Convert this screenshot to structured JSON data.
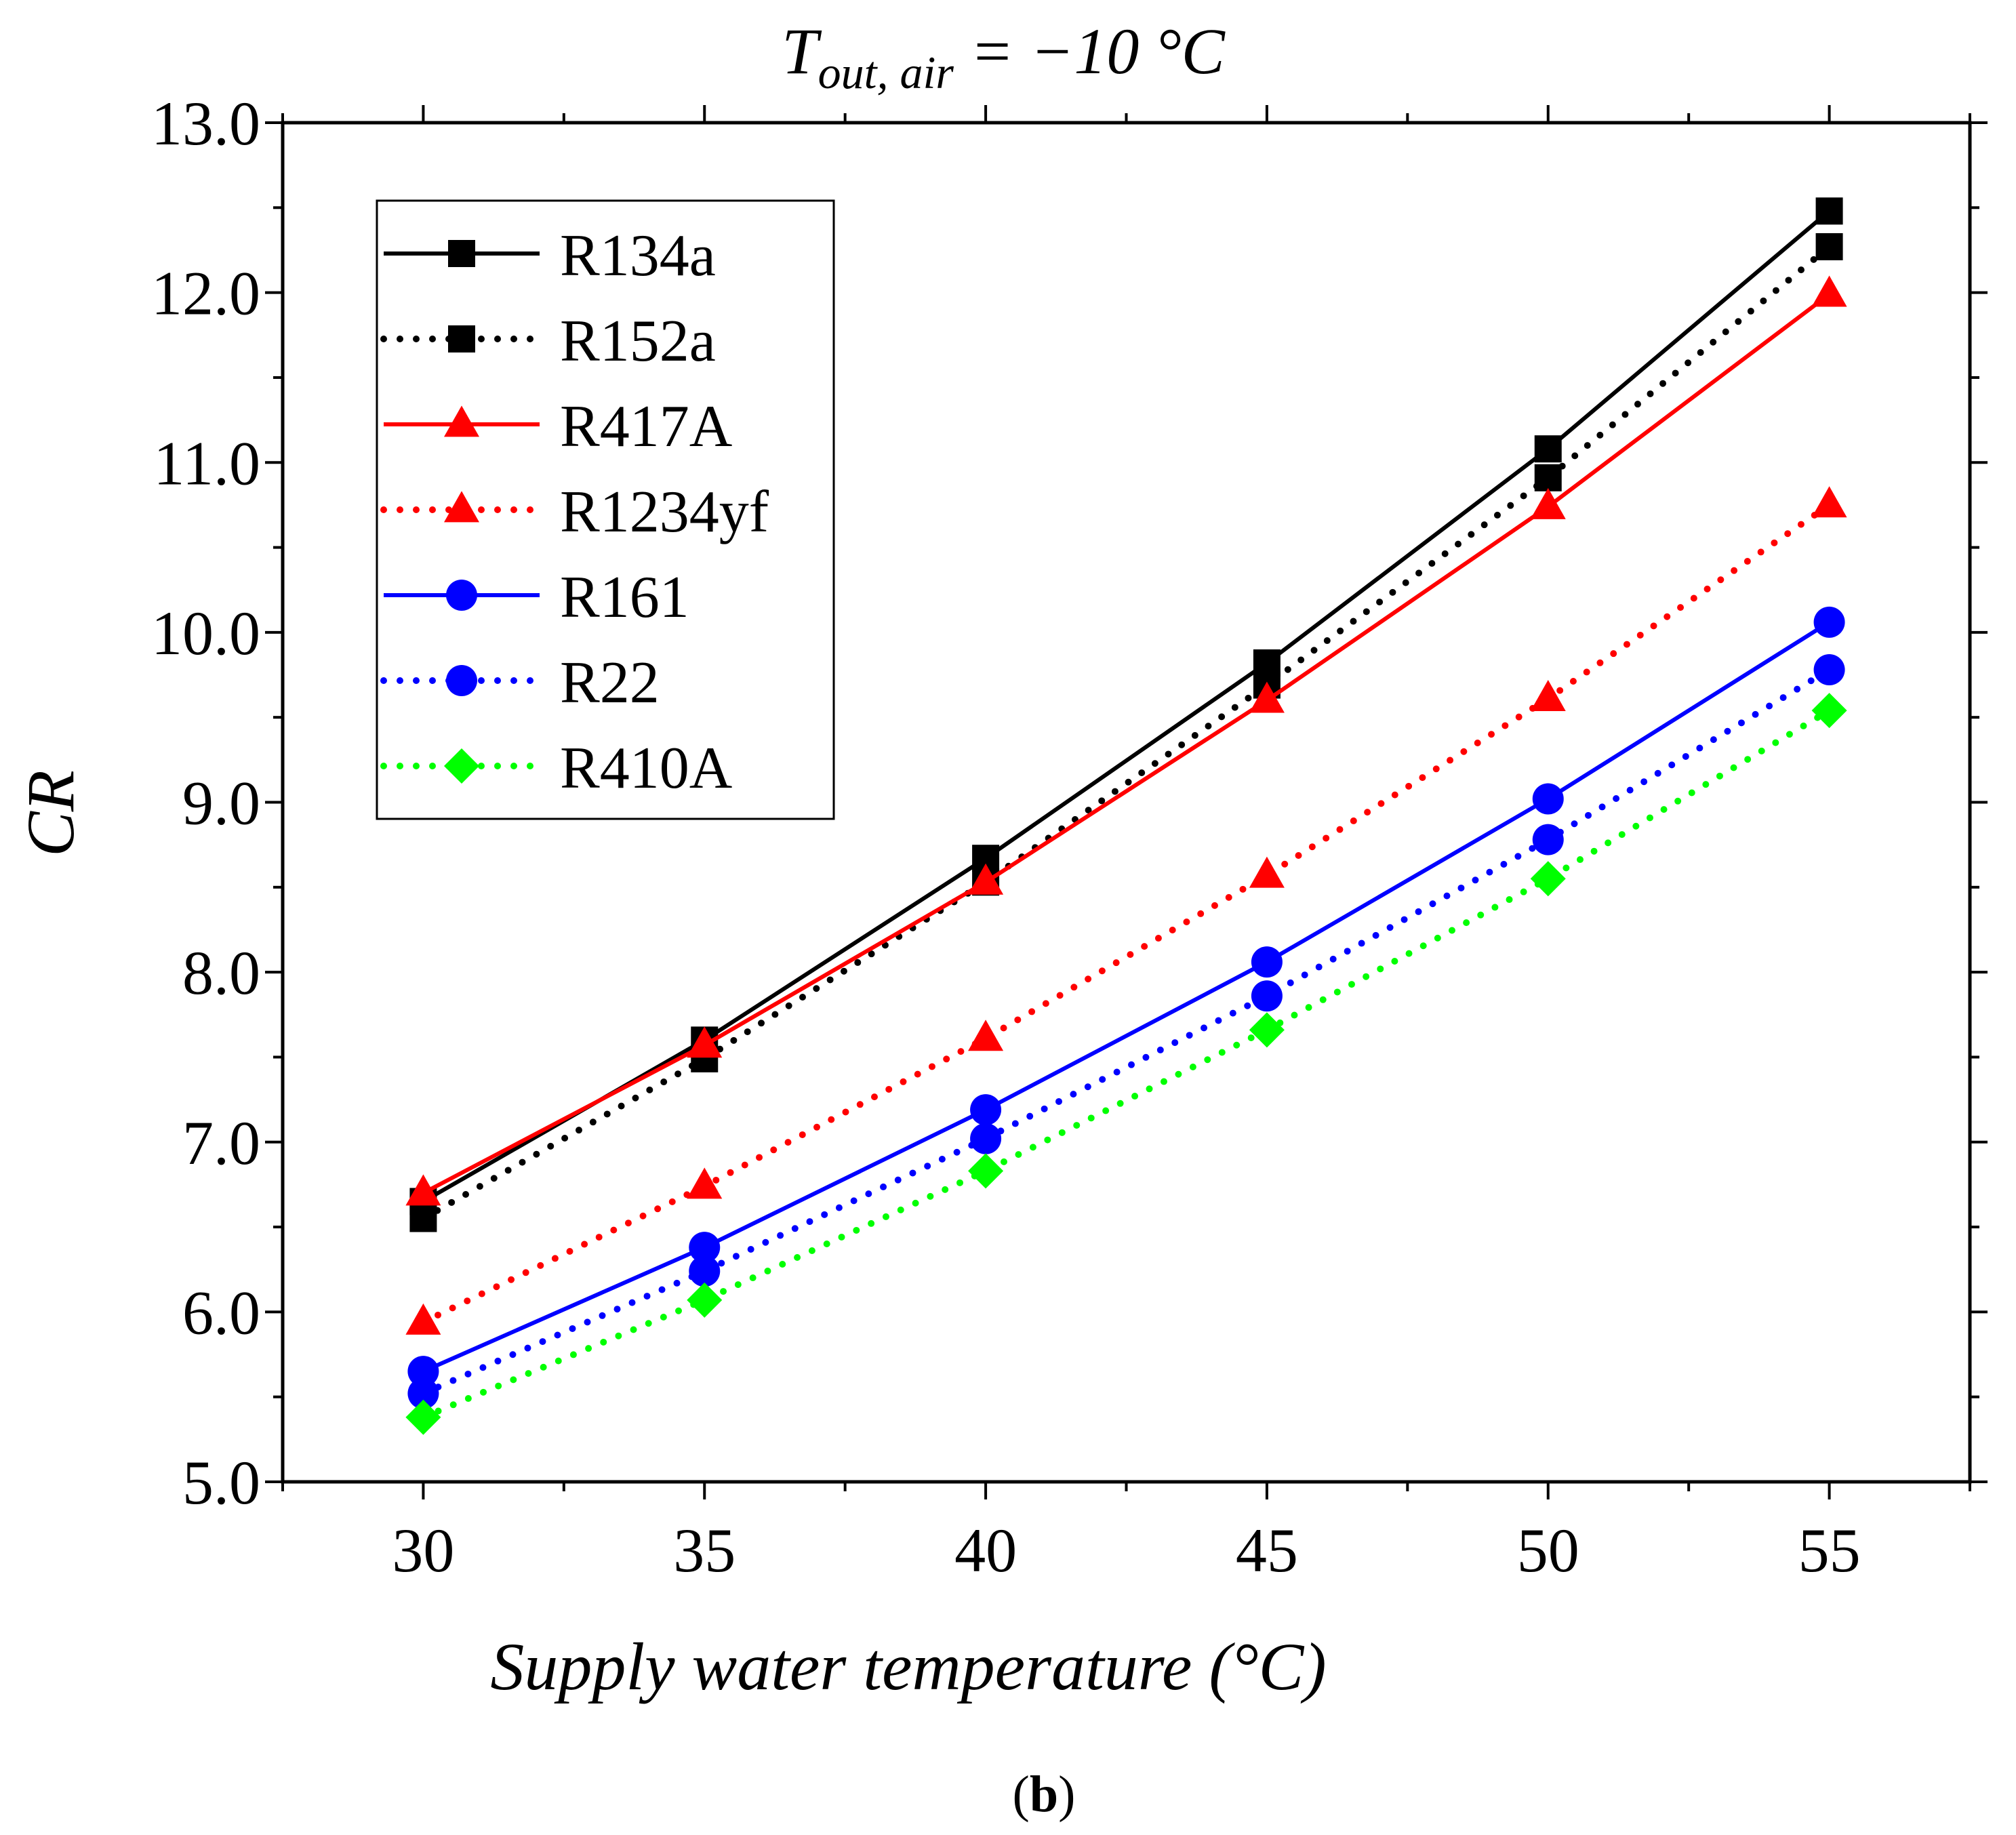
{
  "chart_data": {
    "type": "line",
    "title_main": "T",
    "title_sub": "out, air",
    "title_rest": " = −10 °C",
    "xlabel": "Supply water temperature (°C)",
    "ylabel": "CR",
    "panel_label_open": "(",
    "panel_label_letter": "b",
    "panel_label_close": ")",
    "x": [
      30,
      35,
      40,
      45,
      50,
      55
    ],
    "xlim": [
      27.5,
      57.5
    ],
    "ylim": [
      5.0,
      13.0
    ],
    "xticks": [
      30,
      35,
      40,
      45,
      50,
      55
    ],
    "xtick_labels": [
      "30",
      "35",
      "40",
      "45",
      "50",
      "55"
    ],
    "yticks": [
      5,
      6,
      7,
      8,
      9,
      10,
      11,
      12,
      13
    ],
    "ytick_labels": [
      "5.0",
      "6.0",
      "7.0",
      "8.0",
      "9.0",
      "10.0",
      "11.0",
      "12.0",
      "13.0"
    ],
    "legend_position": "top-left",
    "series": [
      {
        "name": "R134a",
        "color": "#000000",
        "dash": "solid",
        "marker": "square",
        "values": [
          6.65,
          7.6,
          8.67,
          9.82,
          11.08,
          12.48
        ]
      },
      {
        "name": "R152a",
        "color": "#000000",
        "dash": "dotted",
        "marker": "square",
        "values": [
          6.55,
          7.49,
          8.53,
          9.69,
          10.91,
          12.27
        ]
      },
      {
        "name": "R417A",
        "color": "#ff0000",
        "dash": "solid",
        "marker": "triangle",
        "values": [
          6.7,
          7.57,
          8.53,
          9.6,
          10.74,
          11.99
        ]
      },
      {
        "name": "R1234yf",
        "color": "#ff0000",
        "dash": "dotted",
        "marker": "triangle",
        "values": [
          5.94,
          6.74,
          7.61,
          8.57,
          9.61,
          10.75
        ]
      },
      {
        "name": "R161",
        "color": "#0000ff",
        "dash": "solid",
        "marker": "circle",
        "values": [
          5.65,
          6.38,
          7.19,
          8.06,
          9.02,
          10.06
        ]
      },
      {
        "name": "R22",
        "color": "#0000ff",
        "dash": "dotted",
        "marker": "circle",
        "values": [
          5.52,
          6.24,
          7.02,
          7.86,
          8.78,
          9.78
        ]
      },
      {
        "name": "R410A",
        "color": "#00ff00",
        "dash": "dotted",
        "marker": "diamond",
        "values": [
          5.38,
          6.07,
          6.83,
          7.66,
          8.55,
          9.54
        ]
      }
    ]
  }
}
